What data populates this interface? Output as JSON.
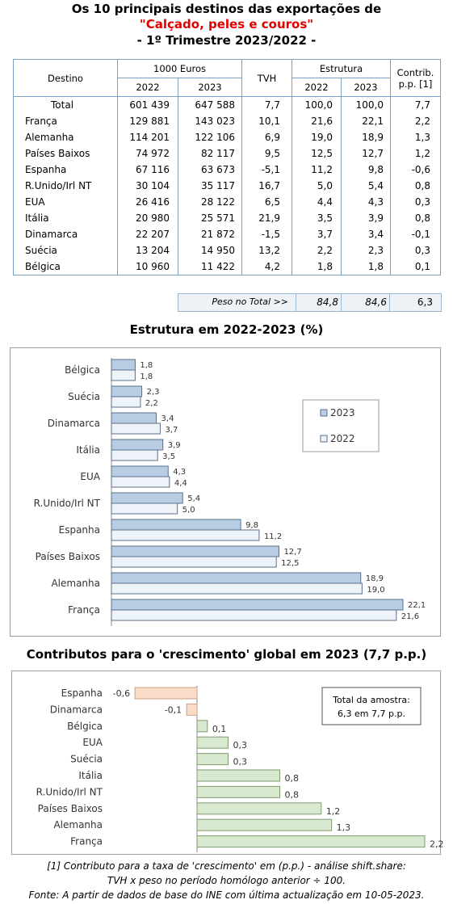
{
  "header": {
    "line1": "Os 10 principais destinos das exportações de",
    "line2": "\"Calçado, peles e couros\"",
    "line3": "- 1º Trimestre 2023/2022 -"
  },
  "table": {
    "col_destino": "Destino",
    "col_euros": "1000 Euros",
    "col_tvh": "TVH",
    "col_estrutura": "Estrutura",
    "col_contrib": "Contrib. p.p. [1]",
    "sub": [
      "2022",
      "2023",
      "2022",
      "2023"
    ],
    "total": {
      "name": "Total",
      "v2022": "601 439",
      "v2023": "647 588",
      "tvh": "7,7",
      "e2022": "100,0",
      "e2023": "100,0",
      "contrib": "7,7"
    },
    "rows": [
      {
        "name": "França",
        "v2022": "129 881",
        "v2023": "143 023",
        "tvh": "10,1",
        "e2022": "21,6",
        "e2023": "22,1",
        "contrib": "2,2"
      },
      {
        "name": "Alemanha",
        "v2022": "114 201",
        "v2023": "122 106",
        "tvh": "6,9",
        "e2022": "19,0",
        "e2023": "18,9",
        "contrib": "1,3"
      },
      {
        "name": "Países Baixos",
        "v2022": "74 972",
        "v2023": "82 117",
        "tvh": "9,5",
        "e2022": "12,5",
        "e2023": "12,7",
        "contrib": "1,2"
      },
      {
        "name": "Espanha",
        "v2022": "67 116",
        "v2023": "63 673",
        "tvh": "-5,1",
        "e2022": "11,2",
        "e2023": "9,8",
        "contrib": "-0,6"
      },
      {
        "name": "R.Unido/Irl NT",
        "v2022": "30 104",
        "v2023": "35 117",
        "tvh": "16,7",
        "e2022": "5,0",
        "e2023": "5,4",
        "contrib": "0,8"
      },
      {
        "name": "EUA",
        "v2022": "26 416",
        "v2023": "28 122",
        "tvh": "6,5",
        "e2022": "4,4",
        "e2023": "4,3",
        "contrib": "0,3"
      },
      {
        "name": "Itália",
        "v2022": "20 980",
        "v2023": "25 571",
        "tvh": "21,9",
        "e2022": "3,5",
        "e2023": "3,9",
        "contrib": "0,8"
      },
      {
        "name": "Dinamarca",
        "v2022": "22 207",
        "v2023": "21 872",
        "tvh": "-1,5",
        "e2022": "3,7",
        "e2023": "3,4",
        "contrib": "-0,1"
      },
      {
        "name": "Suécia",
        "v2022": "13 204",
        "v2023": "14 950",
        "tvh": "13,2",
        "e2022": "2,2",
        "e2023": "2,3",
        "contrib": "0,3"
      },
      {
        "name": "Bélgica",
        "v2022": "10 960",
        "v2023": "11 422",
        "tvh": "4,2",
        "e2022": "1,8",
        "e2023": "1,8",
        "contrib": "0,1"
      }
    ],
    "peso": {
      "label": "Peso no Total >>",
      "e2022": "84,8",
      "e2023": "84,6",
      "contrib": "6,3"
    }
  },
  "colors": {
    "bar2023": "#b8cce4",
    "bar2022": "#eef3fa",
    "neg": "#fadbc8",
    "pos": "#d8e9cf",
    "border": "#7aa0c4"
  },
  "chart_data": [
    {
      "type": "bar",
      "orientation": "horizontal",
      "title": "Estrutura em 2022-2023 (%)",
      "categories": [
        "Bélgica",
        "Suécia",
        "Dinamarca",
        "Itália",
        "EUA",
        "R.Unido/Irl NT",
        "Espanha",
        "Países Baixos",
        "Alemanha",
        "França"
      ],
      "series": [
        {
          "name": "2023",
          "values": [
            1.8,
            2.3,
            3.4,
            3.9,
            4.3,
            5.4,
            9.8,
            12.7,
            18.9,
            22.1
          ],
          "labels": [
            "1,8",
            "2,3",
            "3,4",
            "3,9",
            "4,3",
            "5,4",
            "9,8",
            "12,7",
            "18,9",
            "22,1"
          ]
        },
        {
          "name": "2022",
          "values": [
            1.8,
            2.2,
            3.7,
            3.5,
            4.4,
            5.0,
            11.2,
            12.5,
            19.0,
            21.6
          ],
          "labels": [
            "1,8",
            "2,2",
            "3,7",
            "3,5",
            "4,4",
            "5,0",
            "11,2",
            "12,5",
            "19,0",
            "21,6"
          ]
        }
      ],
      "xlim": [
        0,
        22.1
      ],
      "legend": "right"
    },
    {
      "type": "bar",
      "orientation": "horizontal",
      "title": "Contributos para o 'crescimento' global em 2023 (7,7 p.p.)",
      "categories": [
        "Espanha",
        "Dinamarca",
        "Bélgica",
        "EUA",
        "Suécia",
        "Itália",
        "R.Unido/Irl NT",
        "Países Baixos",
        "Alemanha",
        "França"
      ],
      "values": [
        -0.6,
        -0.1,
        0.1,
        0.3,
        0.3,
        0.8,
        0.8,
        1.2,
        1.3,
        2.2
      ],
      "labels": [
        "-0,6",
        "-0,1",
        "0,1",
        "0,3",
        "0,3",
        "0,8",
        "0,8",
        "1,2",
        "1,3",
        "2,2"
      ],
      "xlim": [
        -0.6,
        2.2
      ],
      "annotation": [
        "Total da amostra:",
        "6,3 em 7,7 p.p."
      ]
    }
  ],
  "footer": {
    "line1": "[1] Contributo para a taxa de 'crescimento' em (p.p.) - análise shift.share:",
    "line2": "TVH x peso no período homólogo anterior ÷ 100.",
    "line3": "Fonte: A partir de dados de base do INE com última actualização em 10-05-2023."
  }
}
